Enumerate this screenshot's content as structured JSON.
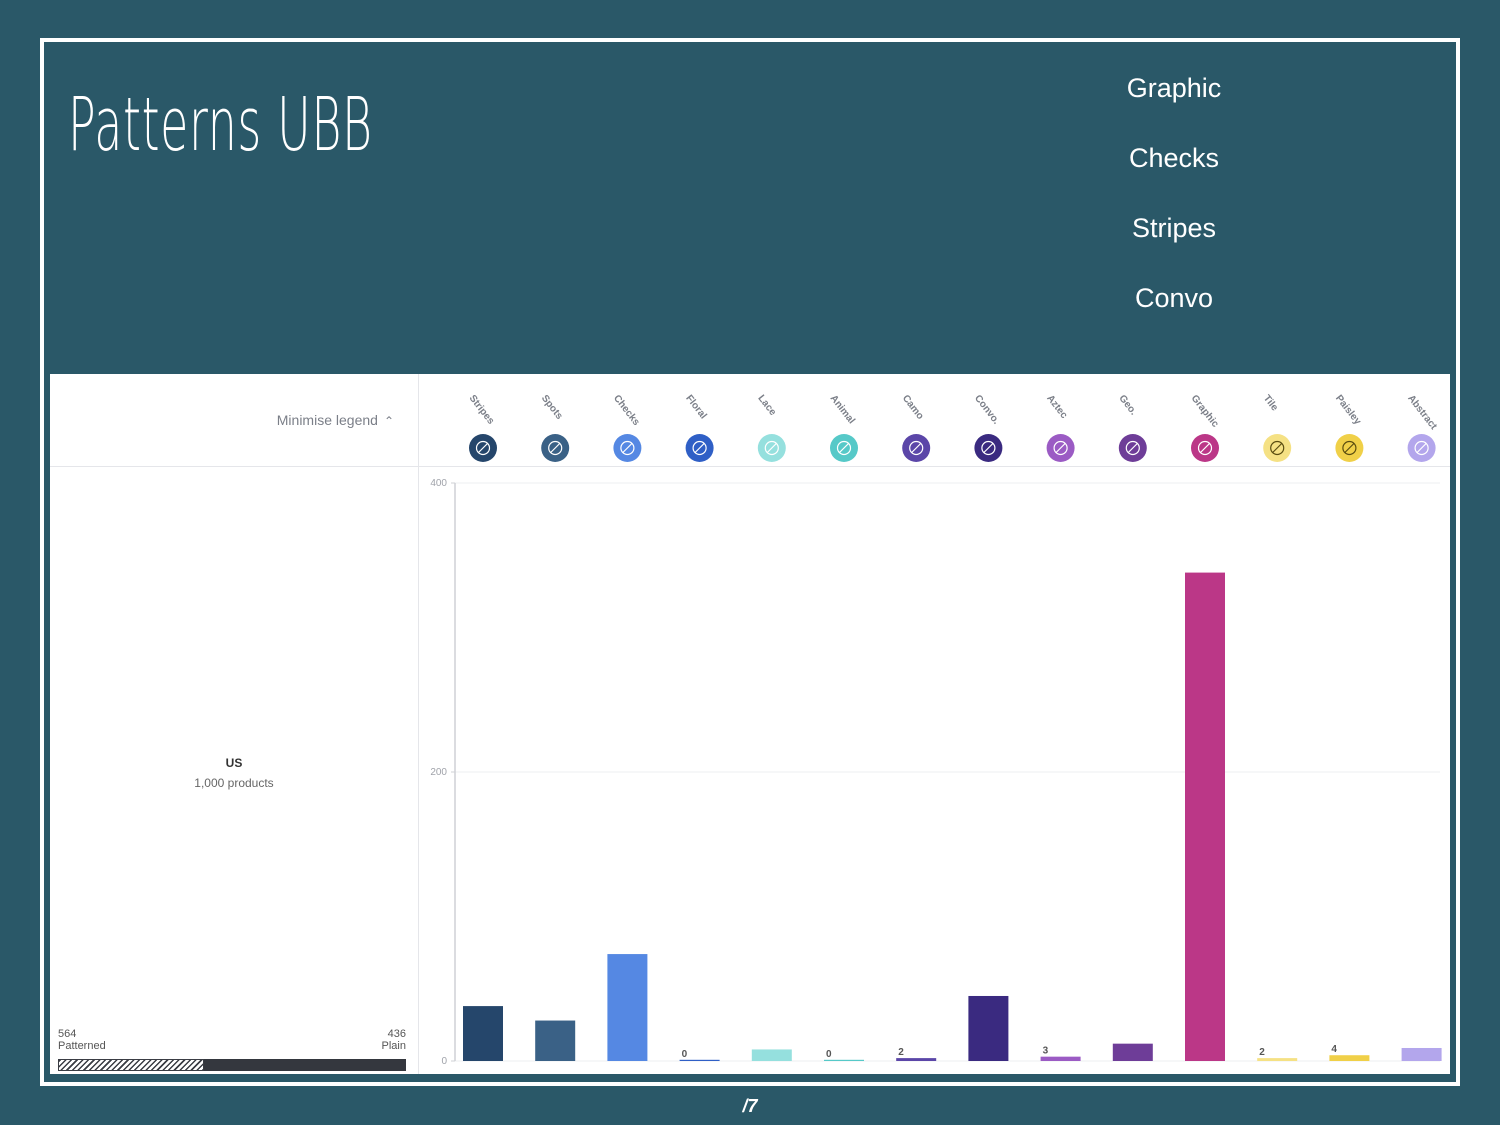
{
  "slide": {
    "title": "Patterns UBB",
    "right_list": [
      "Graphic",
      "Checks",
      "Stripes",
      "Convo"
    ],
    "page_number": "/7"
  },
  "legend": {
    "minimise_label": "Minimise legend",
    "region_name": "US",
    "region_count": "1,000 products",
    "patterned_count": "564",
    "patterned_label": "Patterned",
    "plain_count": "436",
    "plain_label": "Plain",
    "patterned_value": 564,
    "plain_value": 436
  },
  "chart_data": {
    "type": "bar",
    "categories": [
      "Stripes",
      "Spots",
      "Checks",
      "Floral",
      "Lace",
      "Animal",
      "Camo",
      "Convo.",
      "Aztec",
      "Geo.",
      "Graphic",
      "Tile",
      "Paisley",
      "Abstract"
    ],
    "values": [
      38,
      28,
      74,
      0,
      8,
      0,
      2,
      45,
      3,
      12,
      338,
      2,
      4,
      9
    ],
    "value_labels": [
      "",
      "",
      "",
      "0",
      "",
      "0",
      "2",
      "",
      "3",
      "",
      "",
      "2",
      "4",
      ""
    ],
    "colors": [
      "#25466b",
      "#3a6186",
      "#5588e3",
      "#2f5fc6",
      "#95e0de",
      "#56c9c8",
      "#5b46a8",
      "#3a2a80",
      "#9b5bc4",
      "#6e3d98",
      "#bb3787",
      "#f5e184",
      "#f0d048",
      "#b3a6ec"
    ],
    "icons": [
      "stripes-icon",
      "spots-icon",
      "checks-icon",
      "floral-icon",
      "lace-icon",
      "animal-icon",
      "camo-icon",
      "feather-icon",
      "aztec-icon",
      "geo-icon",
      "triangle-icon",
      "tile-icon",
      "paisley-icon",
      "abstract-icon"
    ],
    "yticks": [
      0,
      200,
      400
    ],
    "ylim": [
      0,
      400
    ],
    "grid": true
  }
}
